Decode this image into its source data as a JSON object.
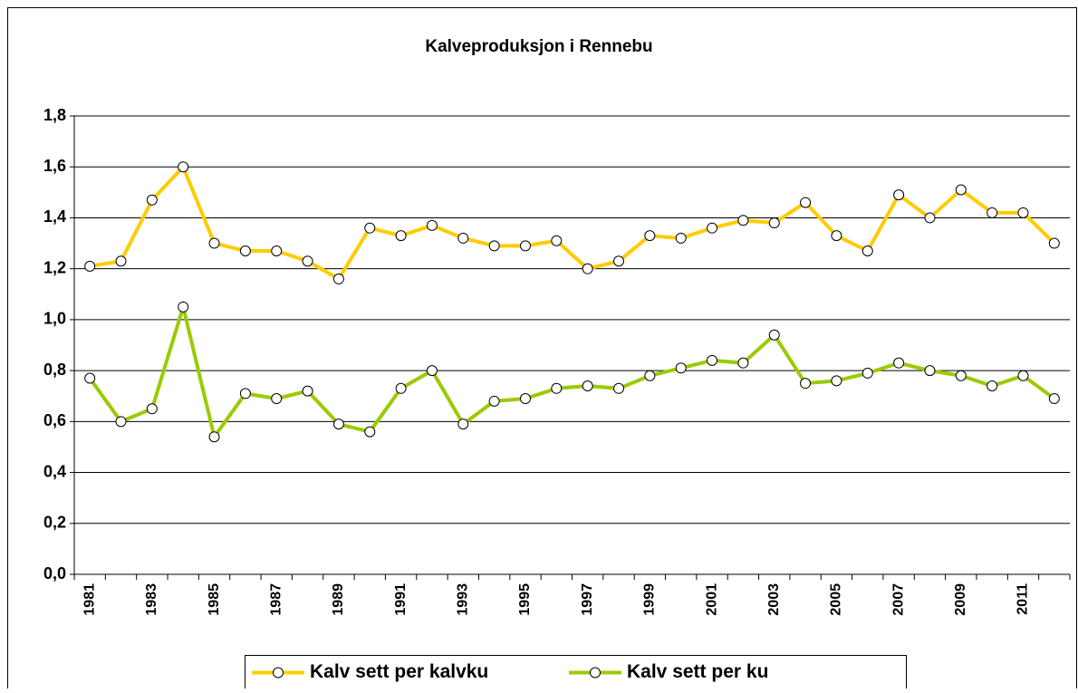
{
  "chart_data": {
    "type": "line",
    "title": "Kalveproduksjon i Rennebu",
    "categories": [
      "1981",
      null,
      "1983",
      null,
      "1985",
      null,
      "1987",
      null,
      "1989",
      null,
      "1991",
      null,
      "1993",
      null,
      "1995",
      null,
      "1997",
      null,
      "1999",
      null,
      "2001",
      null,
      "2003",
      null,
      "2005",
      null,
      "2007",
      null,
      "2009",
      null,
      "2011",
      null
    ],
    "series": [
      {
        "name": "Kalv sett per kalvku",
        "color": "#ffcc00",
        "values": [
          1.21,
          1.23,
          1.47,
          1.6,
          1.3,
          1.27,
          1.27,
          1.23,
          1.16,
          1.36,
          1.33,
          1.37,
          1.32,
          1.29,
          1.29,
          1.31,
          1.2,
          1.23,
          1.33,
          1.32,
          1.36,
          1.39,
          1.38,
          1.46,
          1.33,
          1.27,
          1.49,
          1.4,
          1.51,
          1.42,
          1.42,
          1.3
        ]
      },
      {
        "name": "Kalv sett per ku",
        "color": "#99cc00",
        "values": [
          0.77,
          0.6,
          0.65,
          1.05,
          0.54,
          0.71,
          0.69,
          0.72,
          0.59,
          0.56,
          0.73,
          0.8,
          0.59,
          0.68,
          0.69,
          0.73,
          0.74,
          0.73,
          0.78,
          0.81,
          0.84,
          0.83,
          0.94,
          0.75,
          0.76,
          0.79,
          0.83,
          0.8,
          0.78,
          0.74,
          0.78,
          0.69
        ]
      }
    ],
    "ylim": [
      0,
      1.8
    ],
    "yticks": [
      {
        "value": 0,
        "label": "0,0"
      },
      {
        "value": 0.2,
        "label": "0,2"
      },
      {
        "value": 0.4,
        "label": "0,4"
      },
      {
        "value": 0.6,
        "label": "0,6"
      },
      {
        "value": 0.8,
        "label": "0,8"
      },
      {
        "value": 1.0,
        "label": "1,0"
      },
      {
        "value": 1.2,
        "label": "1,2"
      },
      {
        "value": 1.4,
        "label": "1,4"
      },
      {
        "value": 1.6,
        "label": "1,6"
      },
      {
        "value": 1.8,
        "label": "1,8"
      }
    ],
    "grid": true,
    "legend": "bottom"
  }
}
